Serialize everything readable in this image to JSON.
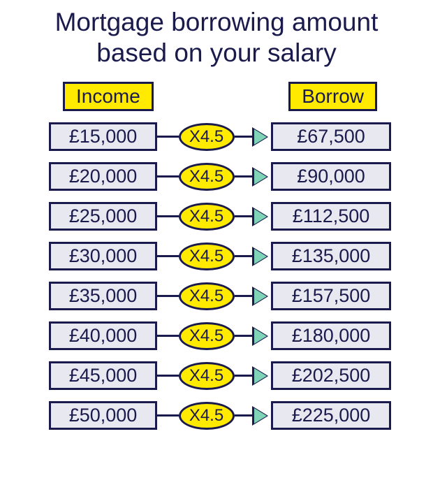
{
  "title_line1": "Mortgage borrowing amount",
  "title_line2": "based on your salary",
  "headers": {
    "income": "Income",
    "borrow": "Borrow"
  },
  "multiplier_label": "X4.5",
  "colors": {
    "text": "#1a1a4d",
    "border": "#1a1a4d",
    "highlight": "#ffea00",
    "box_bg": "#e8e8f0",
    "arrow_fill": "#7fd4b8",
    "background": "#ffffff"
  },
  "rows": [
    {
      "income": "£15,000",
      "borrow": "£67,500"
    },
    {
      "income": "£20,000",
      "borrow": "£90,000"
    },
    {
      "income": "£25,000",
      "borrow": "£112,500"
    },
    {
      "income": "£30,000",
      "borrow": "£135,000"
    },
    {
      "income": "£35,000",
      "borrow": "£157,500"
    },
    {
      "income": "£40,000",
      "borrow": "£180,000"
    },
    {
      "income": "£45,000",
      "borrow": "£202,500"
    },
    {
      "income": "£50,000",
      "borrow": "£225,000"
    }
  ]
}
